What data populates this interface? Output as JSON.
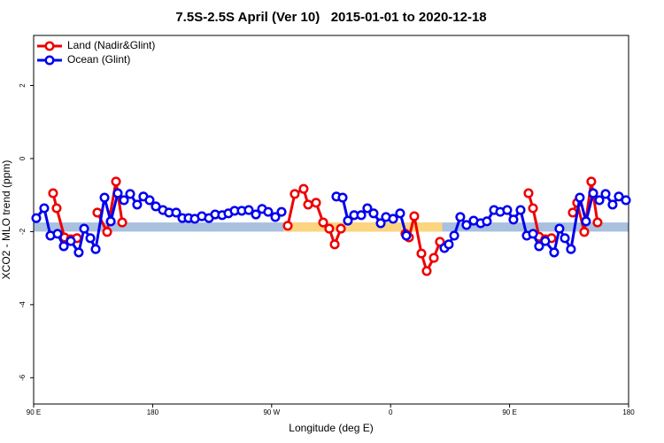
{
  "chart_data": {
    "type": "line",
    "title": "7.5S-2.5S April (Ver 10)   2015-01-01 to 2020-12-18",
    "x_label": "Longitude (deg E)",
    "y_label": "XCO2 - MLO trend (ppm)",
    "xlim": [
      90,
      540
    ],
    "xticks": [
      {
        "value": 90,
        "label": "90 E"
      },
      {
        "value": 180,
        "label": "180"
      },
      {
        "value": 270,
        "label": "90 W"
      },
      {
        "value": 360,
        "label": "0"
      },
      {
        "value": 450,
        "label": "90 E"
      },
      {
        "value": 540,
        "label": "180"
      }
    ],
    "ylim": [
      -6.72,
      3.37
    ],
    "yticks": [
      -6,
      -4,
      -2,
      0,
      2
    ],
    "legend": "top-left",
    "bands": [
      {
        "x": [
          90,
          540
        ],
        "y": [
          -2.0,
          -1.75
        ],
        "color": "#a9c0df"
      },
      {
        "x": [
          279,
          399
        ],
        "y": [
          -2.0,
          -1.75
        ],
        "color": "#fdd57e"
      }
    ],
    "series": [
      {
        "name": "Land (Nadir&Glint)",
        "color": "#ee0000",
        "x": [
          104.7,
          107.4,
          113.4,
          118.1,
          122.8,
          null,
          138.2,
          145.6,
          152.3,
          157.0,
          null,
          282.2,
          287.5,
          294.2,
          297.6,
          303.6,
          309.0,
          313.6,
          317.7,
          322.4,
          null,
          371.2,
          373.9,
          377.9,
          383.3,
          387.3,
          392.7,
          397.3,
          null,
          464.3,
          467.7,
          472.3,
          477.0,
          481.7,
          null,
          497.8,
          501.1,
          506.5,
          511.8,
          516.5
        ],
        "values": [
          -0.95,
          -1.36,
          -2.16,
          -2.21,
          -2.18,
          null,
          -1.48,
          -2.01,
          -0.63,
          -1.75,
          null,
          -1.84,
          -0.97,
          -0.83,
          -1.26,
          -1.21,
          -1.75,
          -1.92,
          -2.35,
          -1.92,
          null,
          -2.06,
          -2.16,
          -1.58,
          -2.6,
          -3.08,
          -2.72,
          -2.28,
          null,
          -0.95,
          -1.36,
          -2.14,
          -2.21,
          -2.18,
          null,
          -1.48,
          -1.21,
          -2.01,
          -0.63,
          -1.75
        ]
      },
      {
        "name": "Ocean (Glint)",
        "color": "#0000ee",
        "x": [
          92.0,
          98.0,
          102.7,
          108.1,
          112.8,
          118.1,
          124.1,
          128.2,
          132.9,
          136.9,
          143.6,
          148.3,
          153.6,
          158.3,
          163.0,
          168.3,
          173.0,
          177.7,
          182.4,
          187.8,
          192.4,
          197.8,
          202.5,
          207.2,
          211.9,
          217.2,
          222.6,
          227.3,
          232.6,
          237.3,
          242.0,
          247.4,
          252.7,
          258.1,
          262.8,
          267.4,
          272.8,
          277.5,
          null,
          319.0,
          323.7,
          327.7,
          332.4,
          337.8,
          342.4,
          347.1,
          352.5,
          356.5,
          361.9,
          367.2,
          371.9,
          null,
          400.7,
          404.0,
          408.1,
          412.7,
          417.4,
          422.8,
          428.1,
          432.8,
          438.2,
          442.9,
          448.2,
          452.9,
          458.3,
          463.0,
          467.7,
          472.3,
          477.0,
          483.7,
          487.7,
          491.8,
          496.4,
          503.1,
          507.8,
          513.2,
          517.9,
          522.6,
          527.9,
          532.6,
          538.0
        ],
        "values": [
          -1.63,
          -1.36,
          -2.11,
          -2.06,
          -2.4,
          -2.26,
          -2.57,
          -1.92,
          -2.18,
          -2.48,
          -1.07,
          -1.72,
          -0.95,
          -1.14,
          -0.97,
          -1.26,
          -1.04,
          -1.14,
          -1.31,
          -1.41,
          -1.48,
          -1.48,
          -1.63,
          -1.63,
          -1.65,
          -1.58,
          -1.63,
          -1.53,
          -1.55,
          -1.5,
          -1.43,
          -1.43,
          -1.41,
          -1.53,
          -1.38,
          -1.46,
          -1.6,
          -1.46,
          null,
          -1.04,
          -1.07,
          -1.7,
          -1.55,
          -1.55,
          -1.36,
          -1.5,
          -1.77,
          -1.6,
          -1.65,
          -1.5,
          -2.11,
          null,
          -2.45,
          -2.35,
          -2.11,
          -1.6,
          -1.82,
          -1.7,
          -1.77,
          -1.72,
          -1.41,
          -1.46,
          -1.41,
          -1.67,
          -1.41,
          -2.11,
          -2.06,
          -2.4,
          -2.26,
          -2.57,
          -1.92,
          -2.18,
          -2.48,
          -1.07,
          -1.72,
          -0.95,
          -1.14,
          -0.97,
          -1.26,
          -1.04,
          -1.14
        ]
      }
    ]
  }
}
